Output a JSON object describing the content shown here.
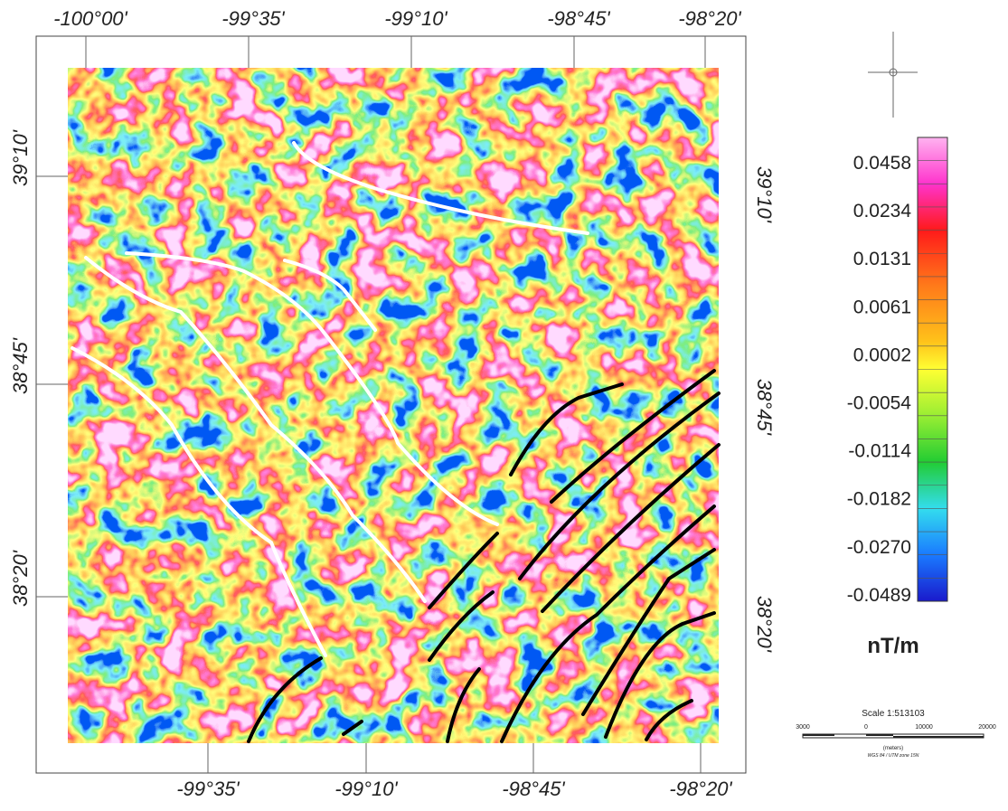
{
  "map": {
    "top_labels": [
      "-100°00'",
      "-99°35'",
      "-99°10'",
      "-98°45'",
      "-98°20'"
    ],
    "bottom_labels": [
      "-99°35'",
      "-99°10'",
      "-98°45'",
      "-98°20'"
    ],
    "left_labels": [
      "39°10'",
      "38°45'",
      "38°20'"
    ],
    "right_labels": [
      "39°10'",
      "38°45'",
      "38°20'"
    ],
    "colorbar": {
      "labels": [
        "0.0458",
        "0.0234",
        "0.0131",
        "0.0061",
        "0.0002",
        "-0.0054",
        "-0.0114",
        "-0.0182",
        "-0.0270",
        "-0.0489"
      ],
      "unit": "nT/m"
    },
    "scale": {
      "title": "Scale 1:513103",
      "ticks": [
        "3000",
        "0",
        "10000",
        "20000"
      ],
      "unit": "(meters)",
      "projection": "WGS 84 / UTM zone 15N"
    }
  }
}
